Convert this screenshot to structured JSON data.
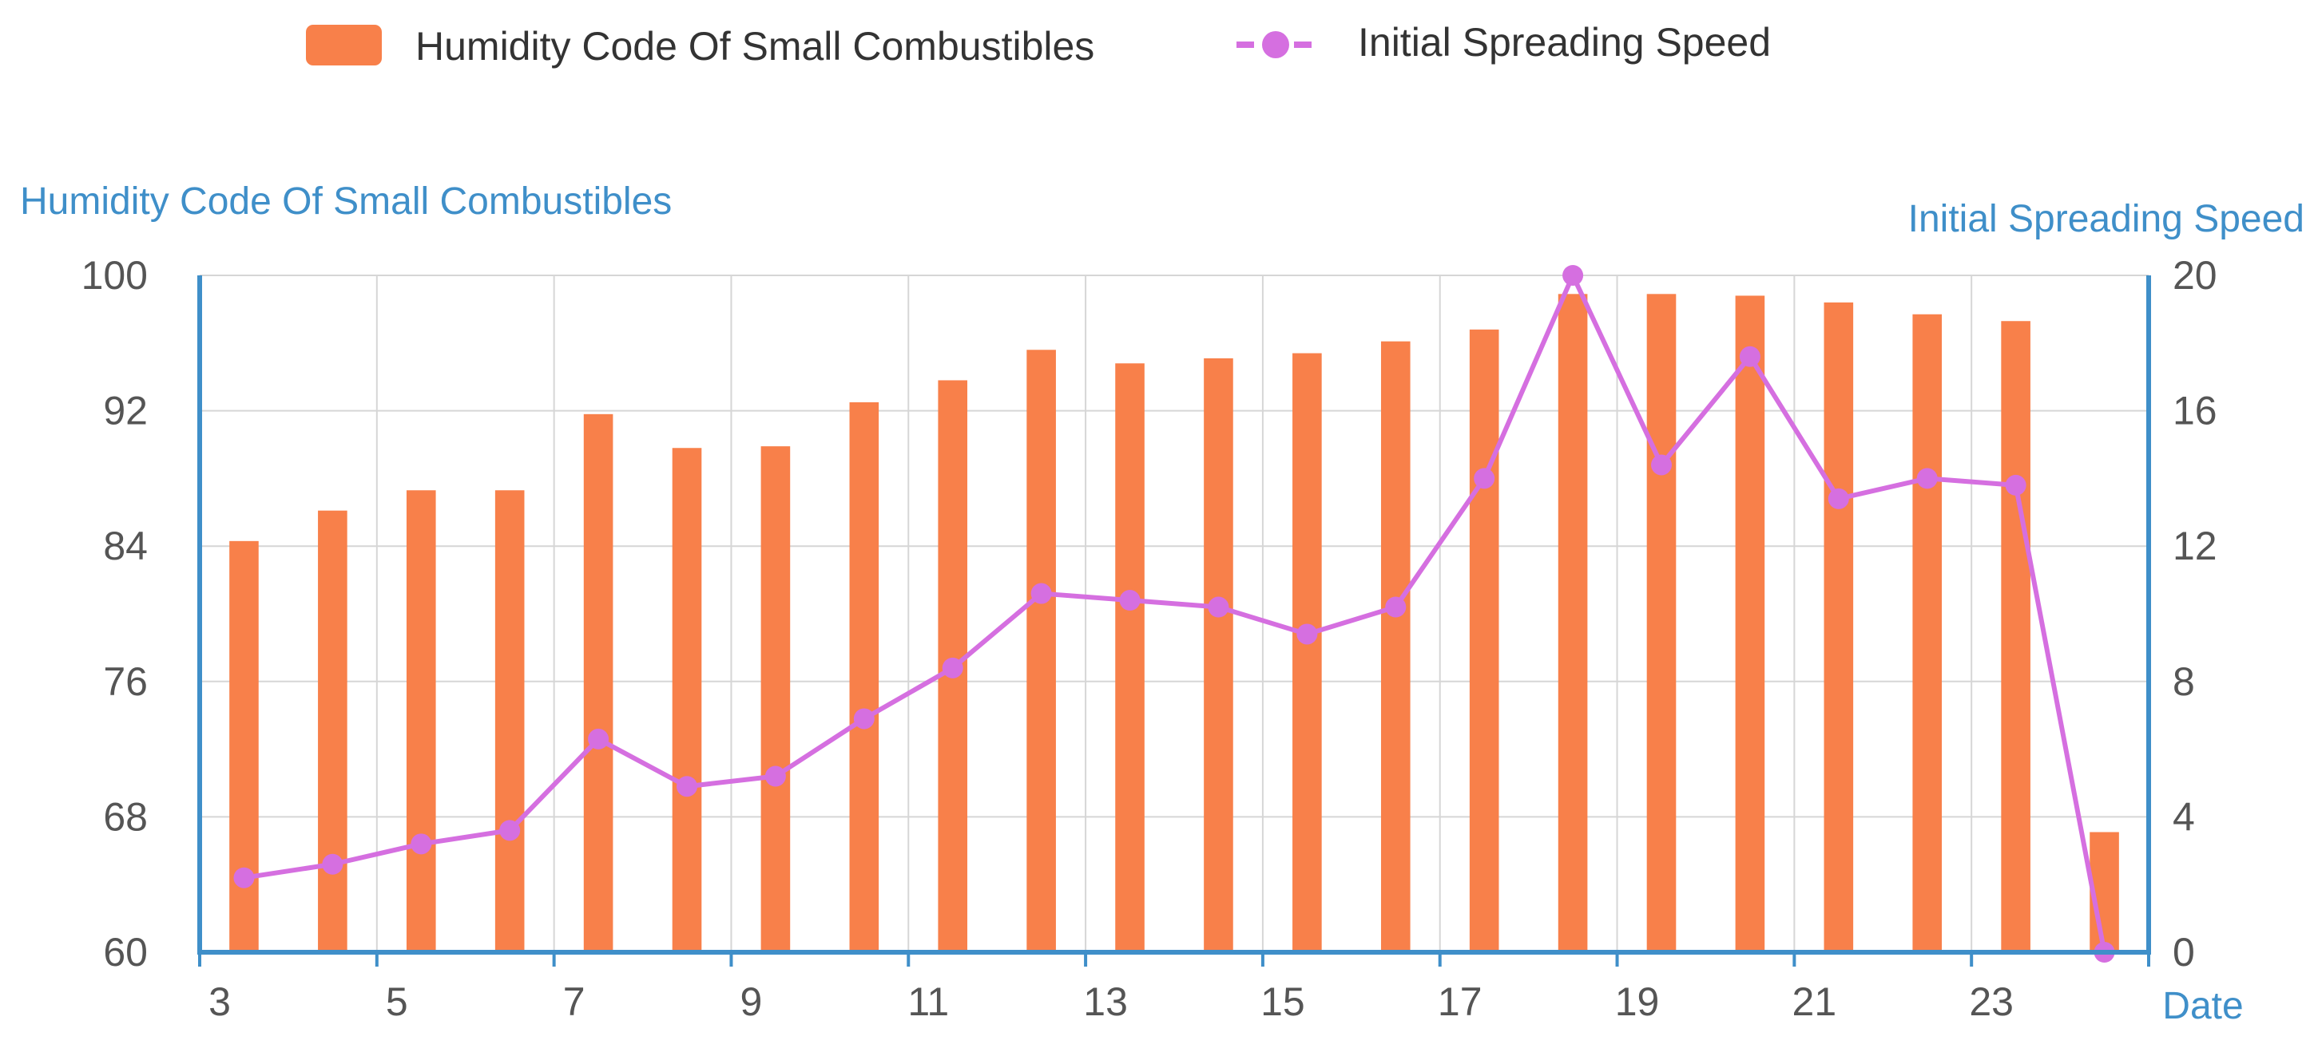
{
  "chart_data": {
    "type": "bar+line",
    "categories": [
      "3",
      "4",
      "5",
      "6",
      "7",
      "8",
      "9",
      "10",
      "11",
      "12",
      "13",
      "14",
      "15",
      "16",
      "17",
      "18",
      "19",
      "20",
      "21",
      "22",
      "23",
      "24"
    ],
    "x_tick_labels": [
      "3",
      "5",
      "7",
      "9",
      "11",
      "13",
      "15",
      "17",
      "19",
      "21",
      "23"
    ],
    "xlabel": "Date",
    "series": [
      {
        "name": "Humidity Code Of Small Combustibles",
        "type": "bar",
        "axis": "left",
        "color": "#f8804a",
        "values": [
          84.3,
          86.1,
          87.3,
          87.3,
          91.8,
          89.8,
          89.9,
          92.5,
          93.8,
          95.6,
          94.8,
          95.1,
          95.4,
          96.1,
          96.8,
          98.9,
          98.9,
          98.8,
          98.4,
          97.7,
          97.3,
          67.1
        ]
      },
      {
        "name": "Initial Spreading Speed",
        "type": "line",
        "axis": "right",
        "color": "#d56fe0",
        "values": [
          2.2,
          2.6,
          3.2,
          3.6,
          6.3,
          4.9,
          5.2,
          6.9,
          8.4,
          10.6,
          10.4,
          10.2,
          9.4,
          10.2,
          14.0,
          20.0,
          14.4,
          17.6,
          13.4,
          14.0,
          13.8,
          0.0
        ]
      }
    ],
    "y_left": {
      "label": "Humidity Code Of Small Combustibles",
      "range": [
        60,
        100
      ],
      "ticks": [
        60,
        68,
        76,
        84,
        92,
        100
      ]
    },
    "y_right": {
      "label": "Initial Spreading Speed",
      "range": [
        0,
        20
      ],
      "ticks": [
        0,
        4,
        8,
        12,
        16,
        20
      ]
    },
    "legend": {
      "position": "top",
      "items": [
        "Humidity Code Of Small Combustibles",
        "Initial Spreading Speed"
      ]
    },
    "grid": true
  }
}
